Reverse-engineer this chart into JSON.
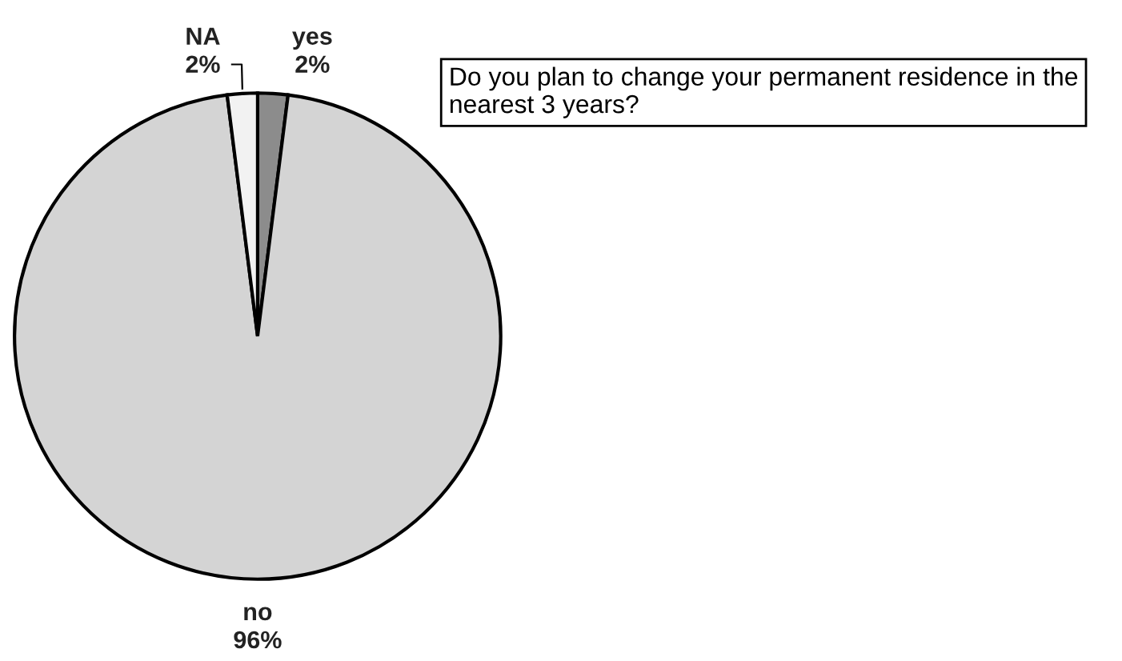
{
  "chart_data": {
    "type": "pie",
    "title": "Do you plan to change your permanent residence in the nearest 3 years?",
    "categories": [
      "yes",
      "no",
      "NA"
    ],
    "values": [
      2,
      96,
      2
    ],
    "colors": [
      "#8c8c8c",
      "#d4d4d4",
      "#f2f2f2"
    ],
    "value_labels": [
      "2%",
      "96%",
      "2%"
    ]
  }
}
